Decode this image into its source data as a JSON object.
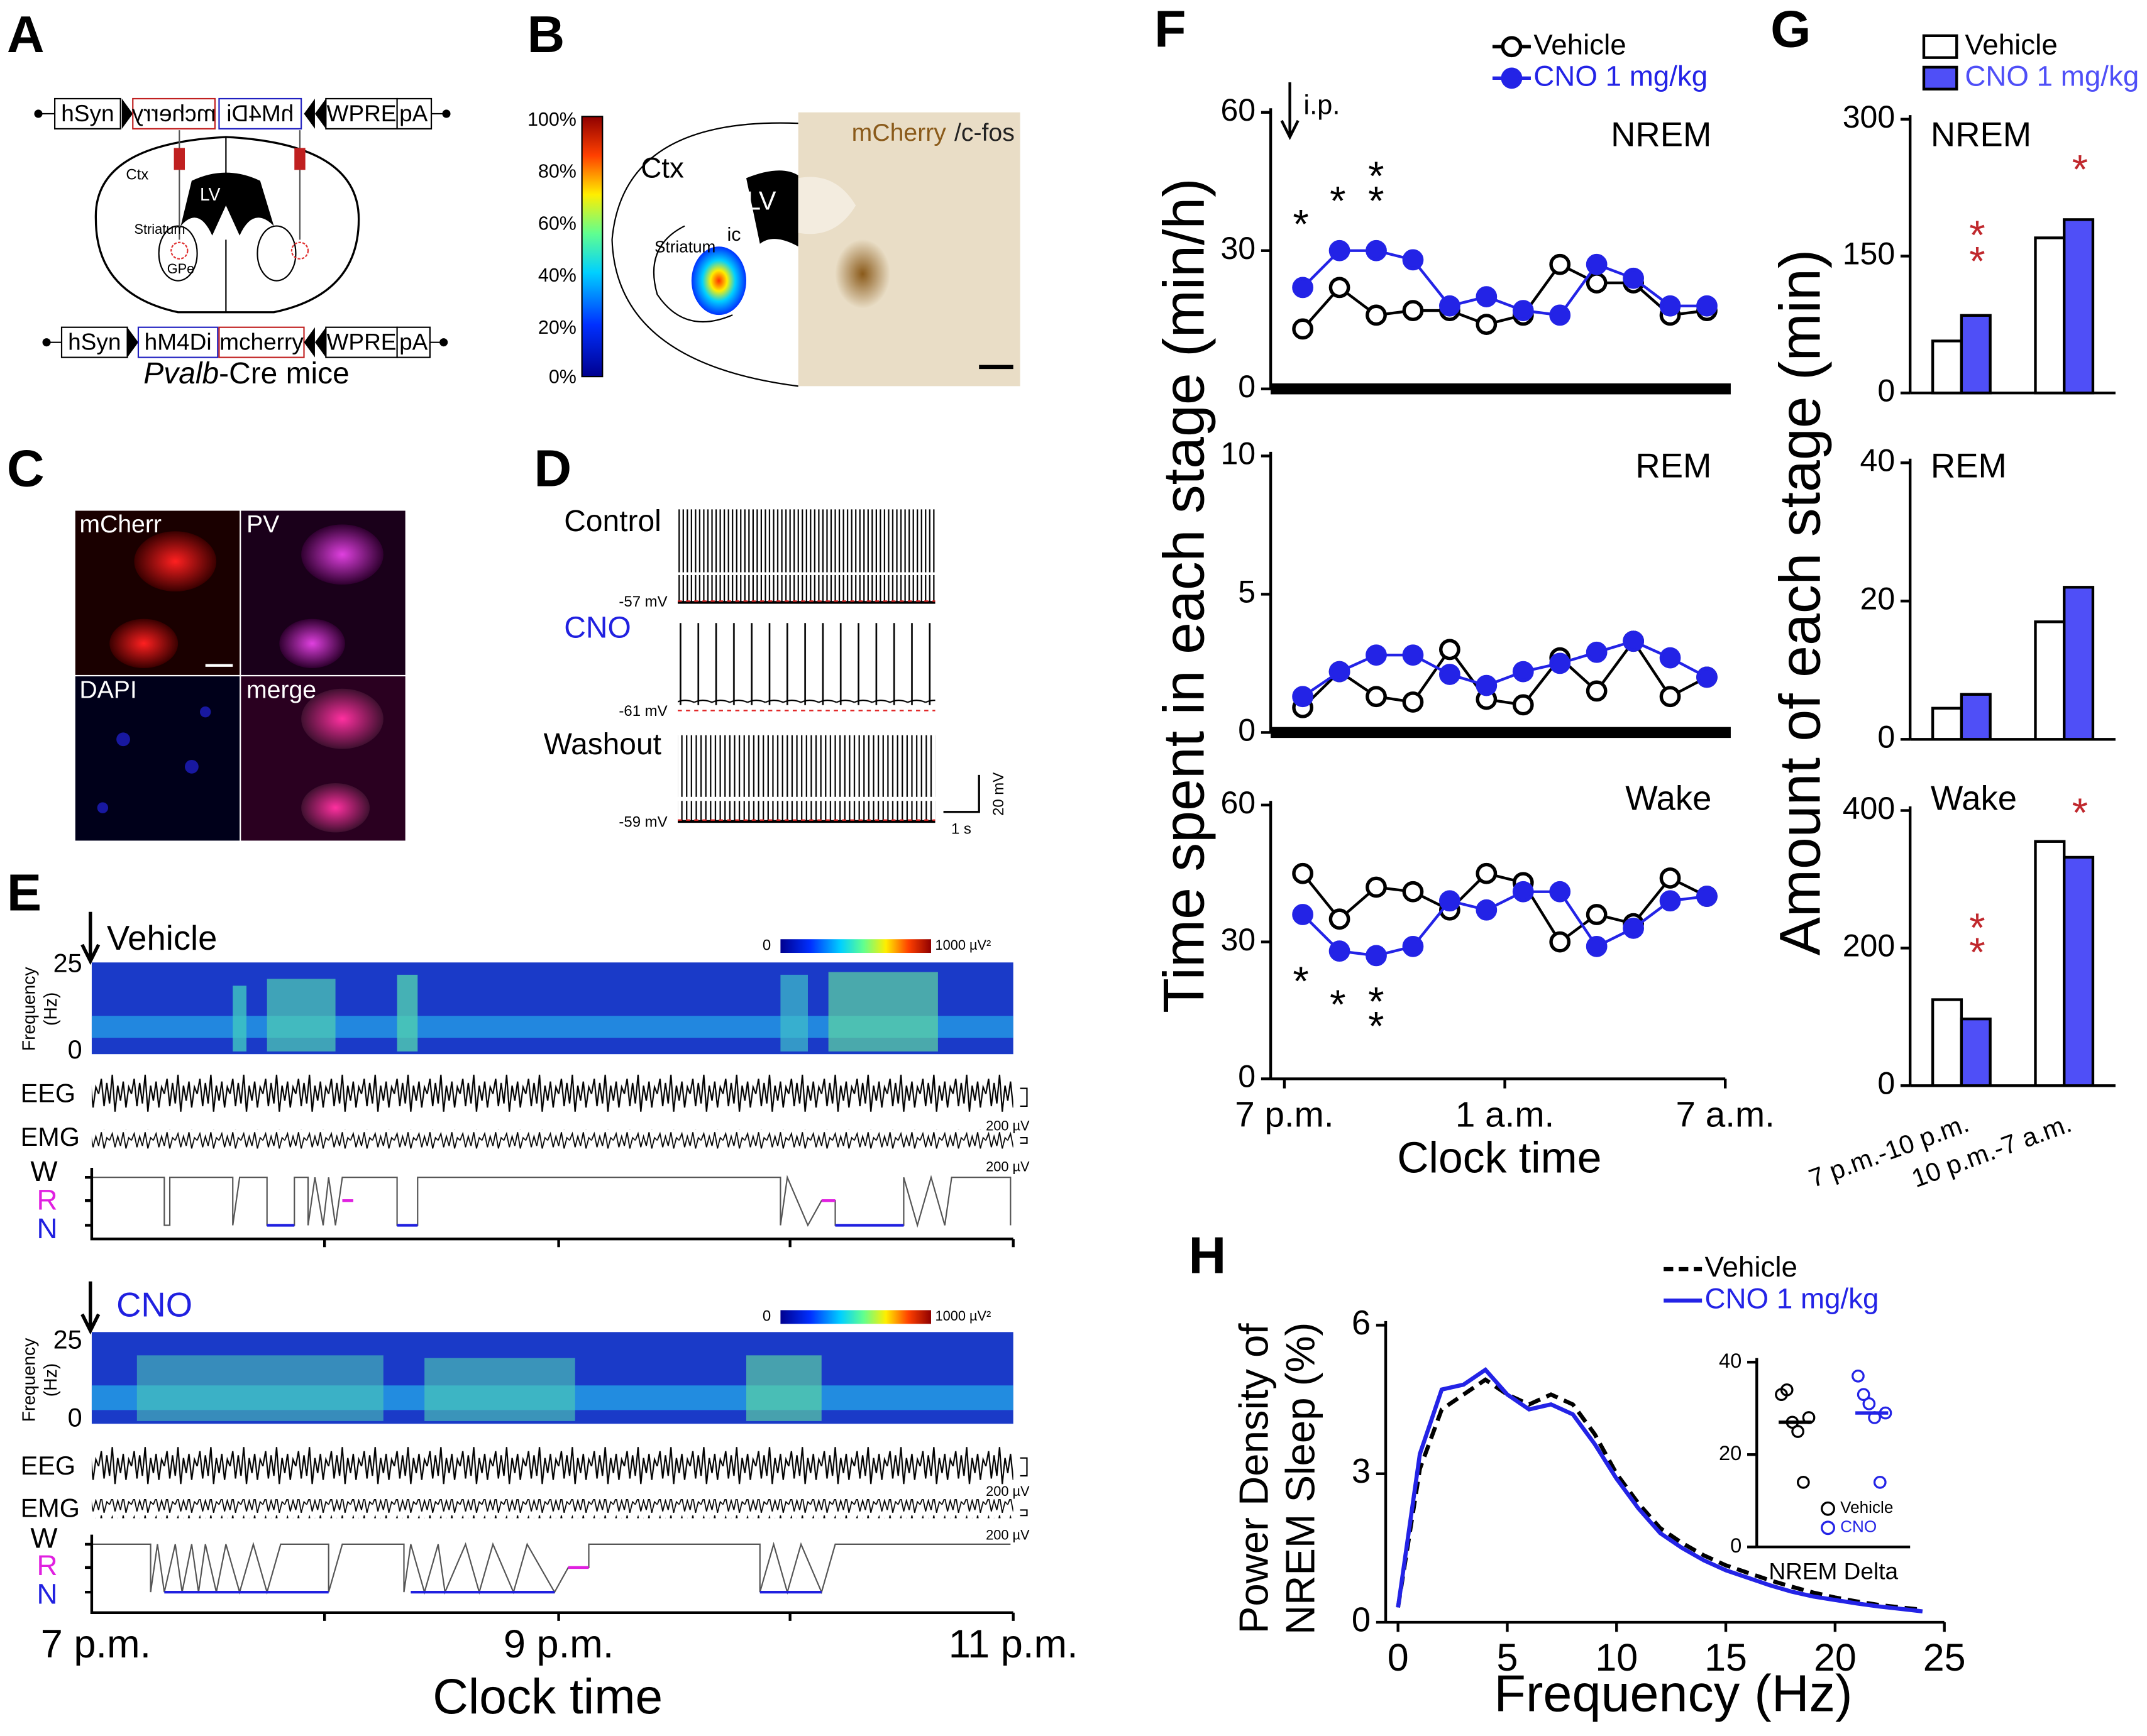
{
  "panels": {
    "A": {
      "label": "A",
      "top": [
        "hSyn",
        "mcherry",
        "hM4Di",
        "WPRE",
        "pA"
      ],
      "bottom": [
        "hSyn",
        "hM4Di",
        "mcherry",
        "WPRE",
        "pA"
      ],
      "regions": [
        "Ctx",
        "LV",
        "Striatum",
        "GPe"
      ],
      "mouse": [
        "Pvalb",
        "-Cre mice"
      ]
    },
    "B": {
      "label": "B",
      "colorbar": [
        "100%",
        "80%",
        "60%",
        "40%",
        "20%",
        "0%"
      ],
      "regions": [
        "Ctx",
        "LV",
        "Striatum",
        "ic"
      ],
      "stain": [
        "mCherry",
        "/c-fos"
      ]
    },
    "C": {
      "label": "C",
      "channels": [
        "mCherr",
        "PV",
        "DAPI",
        "merge"
      ]
    },
    "D": {
      "label": "D",
      "traces": [
        {
          "name": "Control",
          "vm": "-57 mV"
        },
        {
          "name": "CNO",
          "vm": "-61 mV"
        },
        {
          "name": "Washout",
          "vm": "-59 mV"
        }
      ],
      "scale": [
        "1 s",
        "20 mV"
      ]
    },
    "E": {
      "label": "E",
      "recordings": [
        {
          "name": "Vehicle",
          "colorbar": [
            "0",
            "1000 µV²"
          ],
          "freq_ticks": [
            "25",
            "0"
          ],
          "freq_label": [
            "Frequency",
            "(Hz)"
          ],
          "signals": [
            "EEG",
            "EMG"
          ],
          "scales": [
            "200 µV",
            "200 µV"
          ],
          "states": [
            "W",
            "R",
            "N"
          ]
        },
        {
          "name": "CNO",
          "colorbar": [
            "0",
            "1000 µV²"
          ],
          "freq_ticks": [
            "25",
            "0"
          ],
          "freq_label": [
            "Frequency",
            "(Hz)"
          ],
          "signals": [
            "EEG",
            "EMG"
          ],
          "scales": [
            "200 µV",
            "200 µV"
          ],
          "states": [
            "W",
            "R",
            "N"
          ]
        }
      ],
      "xticks": [
        "7 p.m.",
        "9 p.m.",
        "11 p.m."
      ],
      "xlabel": "Clock time"
    },
    "F": {
      "label": "F",
      "arrow_label": "i.p."
    },
    "G": {
      "label": "G"
    },
    "H": {
      "label": "H"
    }
  },
  "chart_data": [
    {
      "type": "line",
      "title": "NREM",
      "markers": true,
      "legend": true,
      "x": [
        0.5,
        1.5,
        2.5,
        3.5,
        4.5,
        5.5,
        6.5,
        7.5,
        8.5,
        9.5,
        10.5,
        11.5
      ],
      "xlim": [
        0,
        12
      ],
      "ylim": [
        0,
        60
      ],
      "yticks": [
        0,
        30,
        60
      ],
      "series": [
        {
          "name": "Vehicle",
          "color": "#000000",
          "fill": "#ffffff",
          "values": [
            13,
            22,
            16,
            17,
            17,
            14,
            16,
            27,
            23,
            23,
            16,
            17
          ]
        },
        {
          "name": "CNO 1 mg/kg",
          "color": "#2323e6",
          "fill": "#2323e6",
          "values": [
            22,
            30,
            30,
            28,
            18,
            20,
            17,
            16,
            27,
            24,
            18,
            18
          ]
        }
      ],
      "annotations": [
        "*",
        "*",
        "*",
        "*"
      ],
      "annotation_color": "#000000"
    },
    {
      "type": "line",
      "title": "REM",
      "markers": true,
      "ylabel": "Time spent in each stage (min/h)",
      "x": [
        0.5,
        1.5,
        2.5,
        3.5,
        4.5,
        5.5,
        6.5,
        7.5,
        8.5,
        9.5,
        10.5,
        11.5
      ],
      "xlim": [
        0,
        12
      ],
      "ylim": [
        0,
        10
      ],
      "yticks": [
        0,
        5,
        10
      ],
      "series": [
        {
          "color": "#000000",
          "fill": "#ffffff",
          "values": [
            0.9,
            2.2,
            1.3,
            1.1,
            3.0,
            1.2,
            1.0,
            2.7,
            1.5,
            3.3,
            1.3,
            2.0
          ]
        },
        {
          "color": "#2323e6",
          "fill": "#2323e6",
          "values": [
            1.3,
            2.2,
            2.8,
            2.8,
            2.1,
            1.7,
            2.2,
            2.5,
            2.9,
            3.3,
            2.7,
            2.0
          ]
        }
      ]
    },
    {
      "type": "line",
      "title": "Wake",
      "markers": true,
      "xlabel": "Clock time",
      "x": [
        0.5,
        1.5,
        2.5,
        3.5,
        4.5,
        5.5,
        6.5,
        7.5,
        8.5,
        9.5,
        10.5,
        11.5
      ],
      "xlim": [
        0,
        12
      ],
      "xticks": [
        {
          "value": 0,
          "label": "7 p.m."
        },
        {
          "value": 6,
          "label": "1 a.m."
        },
        {
          "value": 12,
          "label": "7 a.m."
        }
      ],
      "ylim": [
        0,
        60
      ],
      "yticks": [
        0,
        30,
        60
      ],
      "series": [
        {
          "color": "#000000",
          "fill": "#ffffff",
          "values": [
            45,
            35,
            42,
            41,
            37,
            45,
            43,
            30,
            36,
            34,
            44,
            40
          ]
        },
        {
          "color": "#2323e6",
          "fill": "#2323e6",
          "values": [
            36,
            28,
            27,
            29,
            39,
            37,
            41,
            41,
            29,
            33,
            39,
            40
          ]
        }
      ],
      "annotations": [
        "*",
        "*",
        "*",
        "*"
      ],
      "annotation_color": "#000000"
    },
    {
      "type": "bar",
      "title": "NREM",
      "legend": true,
      "ylim": [
        0,
        300
      ],
      "yticks": [
        0,
        150,
        300
      ],
      "series": [
        {
          "name": "Vehicle",
          "color": "#ffffff",
          "values": [
            57,
            170
          ]
        },
        {
          "name": "CNO 1 mg/kg",
          "color": "#4f4ff7",
          "values": [
            85,
            190
          ]
        }
      ],
      "annotations": [
        "*",
        "*",
        "*"
      ],
      "annotation_color": "#c0282d"
    },
    {
      "type": "bar",
      "title": "REM",
      "ylabel": "Amount of each stage (min)",
      "ylim": [
        0,
        40
      ],
      "yticks": [
        0,
        20,
        40
      ],
      "series": [
        {
          "color": "#ffffff",
          "values": [
            4.5,
            17
          ]
        },
        {
          "color": "#4f4ff7",
          "values": [
            6.5,
            22
          ]
        }
      ]
    },
    {
      "type": "bar",
      "title": "Wake",
      "categories": [
        "7 p.m.-10 p.m.",
        "10 p.m.-7 a.m."
      ],
      "ylim": [
        0,
        400
      ],
      "yticks": [
        0,
        200,
        400
      ],
      "series": [
        {
          "color": "#ffffff",
          "values": [
            125,
            355
          ]
        },
        {
          "color": "#4f4ff7",
          "values": [
            97,
            332
          ]
        }
      ],
      "annotations": [
        "*",
        "*",
        "*"
      ],
      "annotation_color": "#c0282d"
    },
    {
      "type": "line",
      "markers": false,
      "legend": true,
      "ylabel": [
        "Power Density of",
        "NREM Sleep (%)"
      ],
      "xlabel": "Frequency (Hz)",
      "x": [
        0,
        1,
        2,
        3,
        4,
        5,
        6,
        7,
        8,
        9,
        10,
        11,
        12,
        13,
        14,
        15,
        16,
        17,
        18,
        19,
        20,
        21,
        22,
        23,
        24
      ],
      "xlim": [
        0,
        25
      ],
      "xticks": [
        0,
        5,
        10,
        15,
        20,
        25
      ],
      "ylim": [
        0,
        6
      ],
      "yticks": [
        0,
        3,
        6
      ],
      "series": [
        {
          "name": "Vehicle",
          "color": "#000000",
          "dash": true,
          "values": [
            0.3,
            3.1,
            4.3,
            4.6,
            4.9,
            4.6,
            4.4,
            4.6,
            4.4,
            3.8,
            3.0,
            2.4,
            1.9,
            1.6,
            1.35,
            1.15,
            1.0,
            0.85,
            0.72,
            0.6,
            0.5,
            0.42,
            0.35,
            0.3,
            0.25
          ]
        },
        {
          "name": "CNO 1 mg/kg",
          "color": "#2323e6",
          "dash": false,
          "values": [
            0.3,
            3.4,
            4.7,
            4.8,
            5.1,
            4.6,
            4.3,
            4.4,
            4.2,
            3.6,
            2.9,
            2.3,
            1.8,
            1.5,
            1.25,
            1.05,
            0.9,
            0.75,
            0.62,
            0.52,
            0.45,
            0.38,
            0.32,
            0.27,
            0.22
          ]
        }
      ]
    },
    {
      "type": "dot",
      "legend": true,
      "xlabel": "NREM Delta",
      "ylim": [
        0,
        40
      ],
      "yticks": [
        0,
        20,
        40
      ],
      "series": [
        {
          "name": "Vehicle",
          "color": "#000000",
          "values": [
            33,
            34,
            27,
            25,
            14,
            28
          ],
          "mean": 27
        },
        {
          "name": "CNO",
          "color": "#2323e6",
          "values": [
            37,
            33,
            31,
            28,
            14,
            29
          ],
          "mean": 29
        }
      ]
    }
  ]
}
